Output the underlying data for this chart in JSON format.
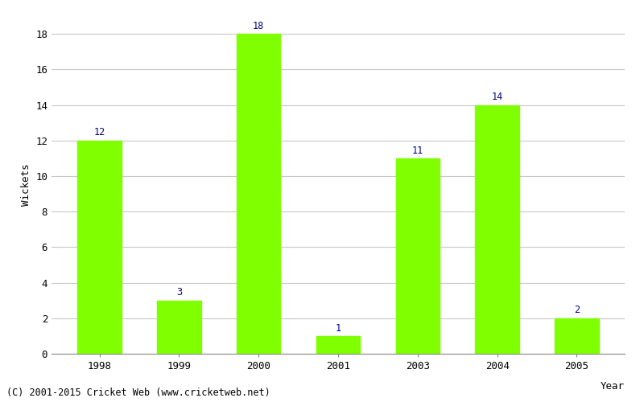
{
  "years": [
    "1998",
    "1999",
    "2000",
    "2001",
    "2003",
    "2004",
    "2005"
  ],
  "wickets": [
    12,
    3,
    18,
    1,
    11,
    14,
    2
  ],
  "bar_color": "#7FFF00",
  "bar_edge_color": "#7FFF00",
  "label_color": "#00008B",
  "xlabel": "Year",
  "ylabel": "Wickets",
  "ylim": [
    0,
    19
  ],
  "yticks": [
    0,
    2,
    4,
    6,
    8,
    10,
    12,
    14,
    16,
    18
  ],
  "grid_color": "#c8c8c8",
  "background_color": "#ffffff",
  "caption": "(C) 2001-2015 Cricket Web (www.cricketweb.net)",
  "label_fontsize": 8.5,
  "axis_tick_fontsize": 9,
  "axis_label_fontsize": 9,
  "caption_fontsize": 8.5,
  "bar_width": 0.55
}
